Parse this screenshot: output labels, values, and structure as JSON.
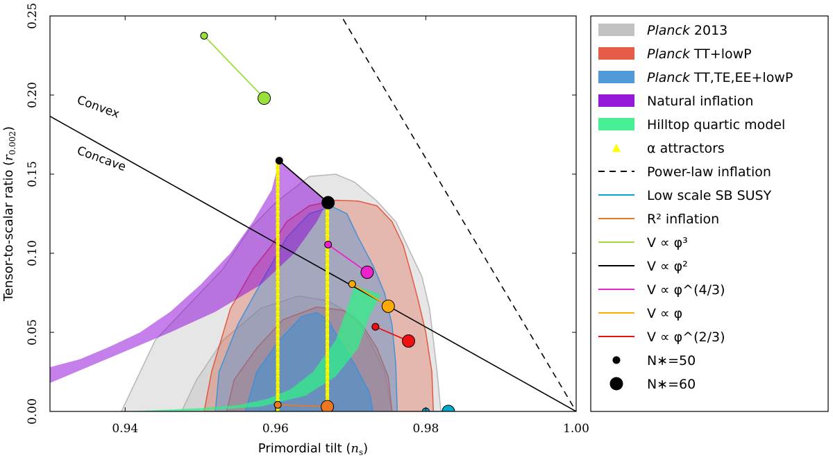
{
  "chart_data": {
    "type": "scatter",
    "xlabel": "Primordial tilt (n_s)",
    "ylabel": "Tensor-to-scalar ratio (r_0.002)",
    "xlim": [
      0.93,
      1.0
    ],
    "ylim": [
      0.0,
      0.25
    ],
    "xticks": [
      0.94,
      0.96,
      0.98,
      1.0
    ],
    "xtick_labels": [
      "0.94",
      "0.96",
      "0.98",
      "1.00"
    ],
    "yticks": [
      0.0,
      0.05,
      0.1,
      0.15,
      0.2,
      0.25
    ],
    "ytick_labels": [
      "0.00",
      "0.05",
      "0.10",
      "0.15",
      "0.20",
      "0.25"
    ],
    "annotations": [
      {
        "text": "Convex",
        "x": 0.9335,
        "y": 0.195,
        "angle": 20
      },
      {
        "text": "Concave",
        "x": 0.9335,
        "y": 0.163,
        "angle": 20
      }
    ],
    "constraint_regions": [
      {
        "name": "Planck 2013",
        "color": "#b0b0b0",
        "outer": [
          [
            0.9395,
            0.0
          ],
          [
            0.9415,
            0.02
          ],
          [
            0.944,
            0.045
          ],
          [
            0.949,
            0.07
          ],
          [
            0.953,
            0.09
          ],
          [
            0.9565,
            0.115
          ],
          [
            0.96,
            0.132
          ],
          [
            0.9645,
            0.1485
          ],
          [
            0.968,
            0.15
          ],
          [
            0.9705,
            0.145
          ],
          [
            0.9735,
            0.133
          ],
          [
            0.976,
            0.12
          ],
          [
            0.978,
            0.1
          ],
          [
            0.9795,
            0.085
          ],
          [
            0.9805,
            0.065
          ],
          [
            0.981,
            0.045
          ],
          [
            0.9815,
            0.025
          ],
          [
            0.982,
            0.0
          ]
        ],
        "inner": [
          [
            0.9475,
            0.0
          ],
          [
            0.9495,
            0.02
          ],
          [
            0.953,
            0.045
          ],
          [
            0.958,
            0.065
          ],
          [
            0.963,
            0.073
          ],
          [
            0.967,
            0.07
          ],
          [
            0.9705,
            0.06
          ],
          [
            0.9725,
            0.045
          ],
          [
            0.9745,
            0.025
          ],
          [
            0.9755,
            0.0
          ]
        ]
      },
      {
        "name": "Planck TT+lowP",
        "color": "#e24b33",
        "outer": [
          [
            0.9505,
            0.0
          ],
          [
            0.9515,
            0.025
          ],
          [
            0.954,
            0.065
          ],
          [
            0.957,
            0.09
          ],
          [
            0.9595,
            0.105
          ],
          [
            0.9615,
            0.12
          ],
          [
            0.9645,
            0.13
          ],
          [
            0.968,
            0.1335
          ],
          [
            0.971,
            0.133
          ],
          [
            0.9735,
            0.13
          ],
          [
            0.9755,
            0.12
          ],
          [
            0.977,
            0.105
          ],
          [
            0.978,
            0.088
          ],
          [
            0.979,
            0.07
          ],
          [
            0.98,
            0.05
          ],
          [
            0.9808,
            0.025
          ],
          [
            0.981,
            0.0
          ]
        ],
        "inner": [
          [
            0.9535,
            0.0
          ],
          [
            0.9545,
            0.02
          ],
          [
            0.9575,
            0.04
          ],
          [
            0.961,
            0.058
          ],
          [
            0.9655,
            0.066
          ],
          [
            0.969,
            0.064
          ],
          [
            0.9715,
            0.055
          ],
          [
            0.9735,
            0.04
          ],
          [
            0.975,
            0.022
          ],
          [
            0.9755,
            0.0
          ]
        ]
      },
      {
        "name": "Planck TT,TE,EE+lowP",
        "color": "#3d8fd6",
        "outer": [
          [
            0.952,
            0.0
          ],
          [
            0.9525,
            0.025
          ],
          [
            0.955,
            0.055
          ],
          [
            0.9585,
            0.085
          ],
          [
            0.9615,
            0.11
          ],
          [
            0.9645,
            0.125
          ],
          [
            0.9675,
            0.1295
          ],
          [
            0.9695,
            0.125
          ],
          [
            0.971,
            0.11
          ],
          [
            0.973,
            0.092
          ],
          [
            0.9745,
            0.075
          ],
          [
            0.9755,
            0.055
          ],
          [
            0.976,
            0.03
          ],
          [
            0.9762,
            0.0
          ]
        ],
        "inner": [
          [
            0.956,
            0.0
          ],
          [
            0.9575,
            0.025
          ],
          [
            0.9605,
            0.045
          ],
          [
            0.9635,
            0.06
          ],
          [
            0.9655,
            0.0625
          ],
          [
            0.967,
            0.058
          ],
          [
            0.9685,
            0.045
          ],
          [
            0.9705,
            0.03
          ],
          [
            0.9725,
            0.012
          ],
          [
            0.973,
            0.0
          ]
        ]
      }
    ],
    "model_bands": [
      {
        "name": "Natural inflation",
        "color": "#8b00d6",
        "polygon": [
          [
            0.93,
            0.028
          ],
          [
            0.934,
            0.033
          ],
          [
            0.938,
            0.041
          ],
          [
            0.942,
            0.05
          ],
          [
            0.946,
            0.063
          ],
          [
            0.95,
            0.08
          ],
          [
            0.954,
            0.1
          ],
          [
            0.957,
            0.12
          ],
          [
            0.9595,
            0.14
          ],
          [
            0.9605,
            0.1585
          ],
          [
            0.9669,
            0.1325
          ],
          [
            0.9655,
            0.12
          ],
          [
            0.9625,
            0.1
          ],
          [
            0.958,
            0.08
          ],
          [
            0.952,
            0.063
          ],
          [
            0.946,
            0.05
          ],
          [
            0.94,
            0.038
          ],
          [
            0.934,
            0.026
          ],
          [
            0.93,
            0.018
          ]
        ]
      },
      {
        "name": "Hilltop quartic model",
        "color": "#33ee88",
        "polygon": [
          [
            0.94,
            0.0
          ],
          [
            0.95,
            0.002
          ],
          [
            0.955,
            0.004
          ],
          [
            0.959,
            0.008
          ],
          [
            0.962,
            0.014
          ],
          [
            0.965,
            0.025
          ],
          [
            0.968,
            0.045
          ],
          [
            0.9695,
            0.065
          ],
          [
            0.9705,
            0.0795
          ],
          [
            0.974,
            0.074
          ],
          [
            0.9725,
            0.06
          ],
          [
            0.971,
            0.04
          ],
          [
            0.968,
            0.022
          ],
          [
            0.964,
            0.01
          ],
          [
            0.958,
            0.003
          ],
          [
            0.95,
            0.0005
          ],
          [
            0.945,
            0.0
          ]
        ]
      }
    ],
    "alpha_attractors": {
      "name": "α attractors",
      "color": "#ffff00",
      "lines": [
        {
          "x": 0.9603,
          "y_start": 0.0,
          "y_end": 0.1585
        },
        {
          "x": 0.9669,
          "y_start": 0.0,
          "y_end": 0.1325
        }
      ]
    },
    "power_law": {
      "name": "Power-law inflation",
      "x": [
        0.969,
        1.0
      ],
      "y": [
        0.248,
        0.0
      ]
    },
    "concave_convex_line": {
      "x": [
        0.93,
        1.0
      ],
      "y": [
        0.1866,
        0.0
      ]
    },
    "series": [
      {
        "name": "V ∝ φ³",
        "color": "#99e03a",
        "x": [
          0.9505,
          0.9585
        ],
        "y": [
          0.2375,
          0.198
        ]
      },
      {
        "name": "V ∝ φ²",
        "color": "#000000",
        "x": [
          0.9605,
          0.967
        ],
        "y": [
          0.1585,
          0.132
        ]
      },
      {
        "name": "V ∝ φ^(4/3)",
        "color": "#ee22cc",
        "x": [
          0.967,
          0.9722
        ],
        "y": [
          0.1055,
          0.088
        ]
      },
      {
        "name": "V ∝ φ",
        "color": "#ffaa00",
        "x": [
          0.9702,
          0.975
        ],
        "y": [
          0.0805,
          0.0665
        ]
      },
      {
        "name": "V ∝ φ^(2/3)",
        "color": "#ee1111",
        "x": [
          0.9733,
          0.9777
        ],
        "y": [
          0.0535,
          0.0445
        ]
      },
      {
        "name": "R² inflation",
        "color": "#ee7722",
        "x": [
          0.9603,
          0.9669
        ],
        "y": [
          0.0042,
          0.003
        ]
      },
      {
        "name": "Low scale SB SUSY",
        "color": "#00aacc",
        "x": [
          0.98,
          0.983
        ],
        "y": [
          0.0,
          0.0
        ]
      }
    ],
    "legend_position": "outside-right",
    "legend": [
      {
        "kind": "patch",
        "color": "#bbbbbb",
        "italic": "Planck",
        "rest": " 2013"
      },
      {
        "kind": "patch",
        "color": "#e24b33",
        "italic": "Planck",
        "rest": " TT+lowP"
      },
      {
        "kind": "patch",
        "color": "#3d8fd6",
        "italic": "Planck",
        "rest": " TT,TE,EE+lowP"
      },
      {
        "kind": "patch",
        "color": "#8b00d6",
        "italic": "",
        "rest": "Natural inflation"
      },
      {
        "kind": "patch",
        "color": "#33ee88",
        "italic": "",
        "rest": "Hilltop quartic model"
      },
      {
        "kind": "triangle",
        "color": "#ffff00",
        "italic": "",
        "rest": "α attractors"
      },
      {
        "kind": "dashed",
        "color": "#000000",
        "italic": "",
        "rest": "Power-law inflation"
      },
      {
        "kind": "line",
        "color": "#00aacc",
        "italic": "",
        "rest": "Low scale SB SUSY"
      },
      {
        "kind": "line",
        "color": "#ee7722",
        "italic": "",
        "rest": "R² inflation"
      },
      {
        "kind": "line",
        "color": "#99e03a",
        "italic": "",
        "rest": "V ∝ φ³"
      },
      {
        "kind": "line",
        "color": "#000000",
        "italic": "",
        "rest": "V ∝ φ²"
      },
      {
        "kind": "line",
        "color": "#ee22cc",
        "italic": "",
        "rest": "V ∝ φ^(4/3)"
      },
      {
        "kind": "line",
        "color": "#ffaa00",
        "italic": "",
        "rest": "V ∝ φ"
      },
      {
        "kind": "line",
        "color": "#ee1111",
        "italic": "",
        "rest": "V ∝ φ^(2/3)"
      },
      {
        "kind": "smalldot",
        "color": "#000000",
        "italic": "",
        "rest": "N∗=50"
      },
      {
        "kind": "bigdot",
        "color": "#000000",
        "italic": "",
        "rest": "N∗=60"
      }
    ]
  }
}
